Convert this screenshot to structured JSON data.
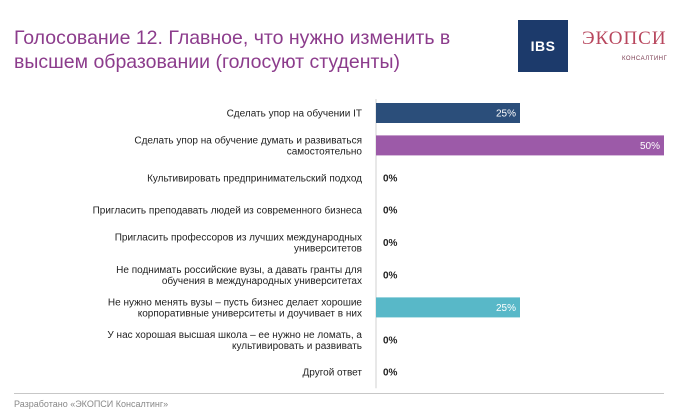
{
  "title": "Голосование 12. Главное, что нужно изменить в высшем образовании (голосуют студенты)",
  "logos": {
    "ibs": "IBS",
    "ekopsi_main": "ЭКОПСИ",
    "ekopsi_sub": "КОНСАЛТИНГ"
  },
  "footer": "Разработано «ЭКОПСИ Консалтинг»",
  "chart_data": {
    "type": "bar",
    "orientation": "horizontal",
    "categories": [
      [
        "Сделать упор на обучении IT"
      ],
      [
        "Сделать упор на обучение думать и развиваться",
        "самостоятельно"
      ],
      [
        "Культивировать предпринимательский подход"
      ],
      [
        "Пригласить преподавать людей из современного бизнеса"
      ],
      [
        "Пригласить профессоров из лучших международных",
        "университетов"
      ],
      [
        "Не поднимать российские вузы, а давать гранты для",
        "обучения в международных университетах"
      ],
      [
        "Не нужно менять вузы – пусть бизнес делает хорошие",
        "корпоративные университеты и доучивает в них"
      ],
      [
        "У нас хорошая высшая школа – ее нужно не ломать, а",
        "культивировать и развивать"
      ],
      [
        "Другой ответ"
      ]
    ],
    "values": [
      25,
      50,
      0,
      0,
      0,
      0,
      25,
      0,
      0
    ],
    "value_labels": [
      "25%",
      "50%",
      "0%",
      "0%",
      "0%",
      "0%",
      "25%",
      "0%",
      "0%"
    ],
    "bar_colors": [
      "#2b4e7a",
      "#9c5aa8",
      "#2b4e7a",
      "#2b4e7a",
      "#2b4e7a",
      "#2b4e7a",
      "#58b8c8",
      "#2b4e7a",
      "#2b4e7a"
    ],
    "xlim": [
      0,
      50
    ],
    "grid": false,
    "legend": false
  }
}
